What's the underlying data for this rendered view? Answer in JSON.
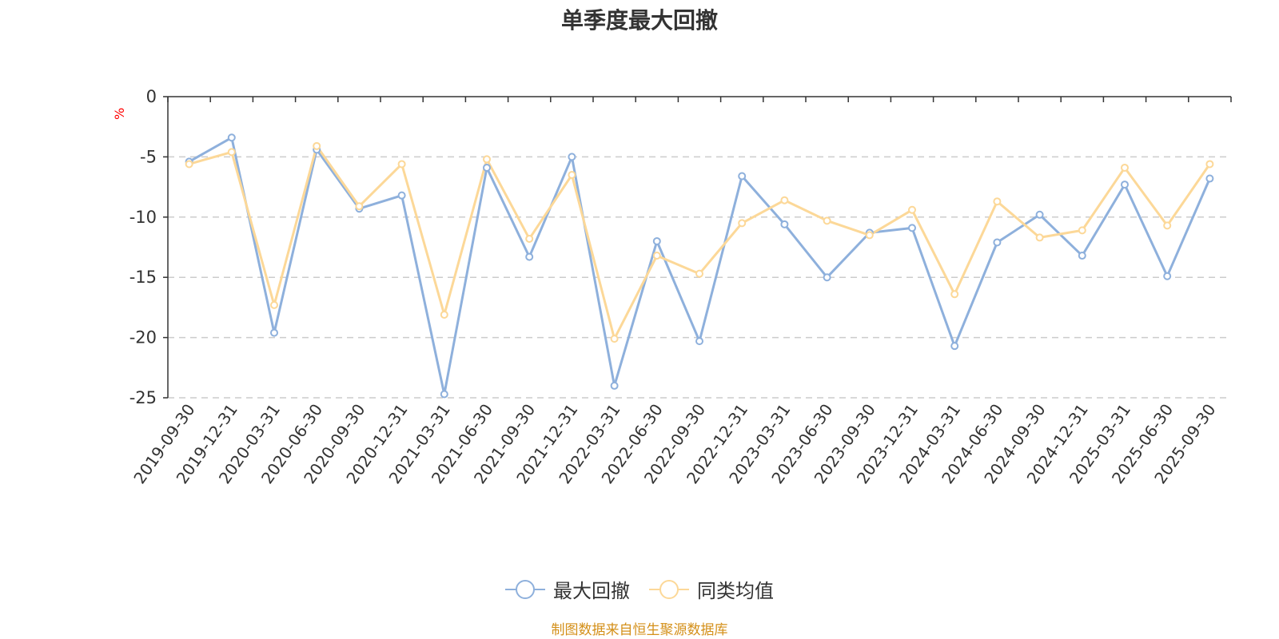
{
  "title": "单季度最大回撤",
  "unit_label": "%",
  "source": "制图数据来自恒生聚源数据库",
  "legend": {
    "series1": "最大回撤",
    "series2": "同类均值"
  },
  "colors": {
    "series1": "#8eb0dc",
    "series2": "#fcd898",
    "grid": "#cccccc",
    "axis": "#333333",
    "unit": "#ff0000",
    "source": "#d4901a"
  },
  "chart_data": {
    "type": "line",
    "title": "单季度最大回撤",
    "xlabel": "",
    "ylabel": "%",
    "ylim": [
      -25,
      0
    ],
    "yticks": [
      0,
      -5,
      -10,
      -15,
      -20,
      -25
    ],
    "grid": true,
    "legend_position": "bottom",
    "categories": [
      "2019-09-30",
      "2019-12-31",
      "2020-03-31",
      "2020-06-30",
      "2020-09-30",
      "2020-12-31",
      "2021-03-31",
      "2021-06-30",
      "2021-09-30",
      "2021-12-31",
      "2022-03-31",
      "2022-06-30",
      "2022-09-30",
      "2022-12-31",
      "2023-03-31",
      "2023-06-30",
      "2023-09-30",
      "2023-12-31",
      "2024-03-31",
      "2024-06-30",
      "2024-09-30",
      "2024-12-31",
      "2025-03-31",
      "2025-06-30",
      "2025-09-30"
    ],
    "series": [
      {
        "name": "最大回撤",
        "values": [
          -5.4,
          -3.4,
          -19.6,
          -4.4,
          -9.3,
          -8.2,
          -24.7,
          -5.9,
          -13.3,
          -5.0,
          -24.0,
          -12.0,
          -20.3,
          -6.6,
          -10.6,
          -15.0,
          -11.3,
          -10.9,
          -20.7,
          -12.1,
          -9.8,
          -13.2,
          -7.3,
          -14.9,
          -6.8
        ]
      },
      {
        "name": "同类均值",
        "values": [
          -5.6,
          -4.6,
          -17.3,
          -4.1,
          -9.1,
          -5.6,
          -18.1,
          -5.2,
          -11.8,
          -6.5,
          -20.1,
          -13.2,
          -14.7,
          -10.5,
          -8.6,
          -10.3,
          -11.5,
          -9.4,
          -16.4,
          -8.7,
          -11.7,
          -11.1,
          -5.9,
          -10.7,
          -5.6
        ]
      }
    ]
  }
}
